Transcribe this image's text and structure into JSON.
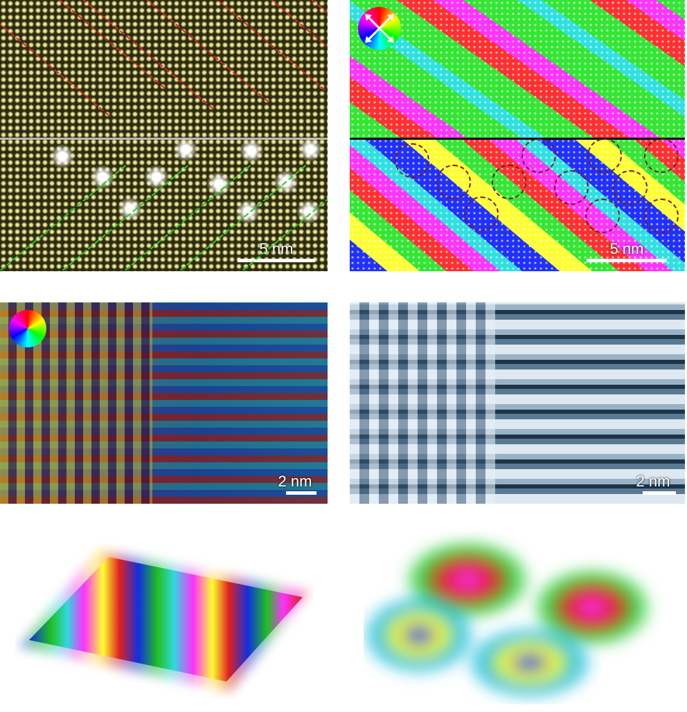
{
  "panels": {
    "a": {
      "scale_label": "5 nm"
    },
    "b": {
      "scale_label": "5 nm",
      "color_wheel_icon": "polarization-color-wheel-icon"
    },
    "c": {
      "scale_label": "2 nm",
      "color_wheel_icon": "color-wheel-icon"
    },
    "d": {
      "scale_label": "2 nm"
    },
    "e": {},
    "f": {}
  },
  "colors": {
    "red_lines": "#e02020",
    "green_lines": "#20d020",
    "circle_outline": "#7a1a1a"
  }
}
